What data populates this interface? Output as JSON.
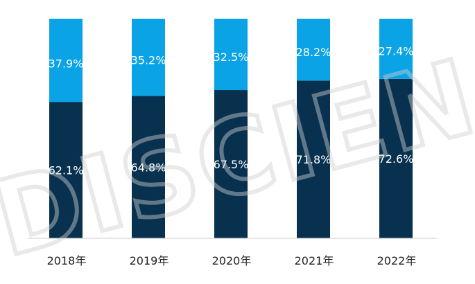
{
  "chart_data": {
    "type": "bar",
    "stacked": true,
    "normalized_percent": true,
    "categories": [
      "2018年",
      "2019年",
      "2020年",
      "2021年",
      "2022年"
    ],
    "series": [
      {
        "name": "",
        "color": "#07314f",
        "values": [
          62.1,
          64.8,
          67.5,
          71.8,
          72.6
        ],
        "labels": [
          "62.1%",
          "64.8%",
          "67.5%",
          "71.8%",
          "72.6%"
        ]
      },
      {
        "name": "",
        "color": "#0aa3e5",
        "values": [
          37.9,
          35.2,
          32.5,
          28.2,
          27.4
        ],
        "labels": [
          "37.9%",
          "35.2%",
          "32.5%",
          "28.2%",
          "27.4%"
        ]
      }
    ],
    "ylim": [
      0,
      100
    ],
    "title": "",
    "xlabel": "",
    "ylabel": "",
    "grid": false,
    "legend_position": "top-center"
  },
  "watermark": {
    "text": "DISCIEN"
  }
}
